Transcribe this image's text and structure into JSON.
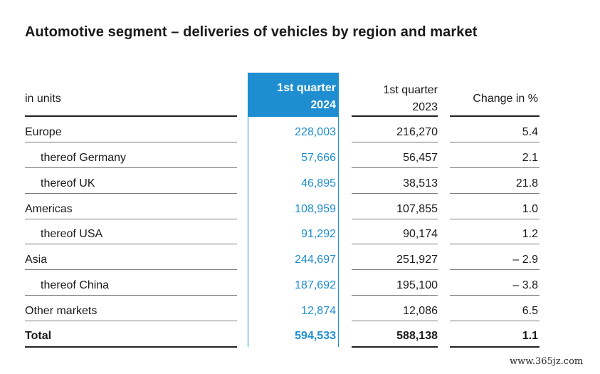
{
  "title": "Automotive segment – deliveries of vehicles by region and market",
  "header": {
    "label": "in units",
    "col1_line1": "1st quarter",
    "col1_line2": "2024",
    "col2_line1": "1st quarter",
    "col2_line2": "2023",
    "col3": "Change in %"
  },
  "rows": [
    {
      "label": "Europe",
      "q2024": "228,003",
      "q2023": "216,270",
      "change": "5.4"
    },
    {
      "label": "thereof Germany",
      "q2024": "57,666",
      "q2023": "56,457",
      "change": "2.1"
    },
    {
      "label": "thereof UK",
      "q2024": "46,895",
      "q2023": "38,513",
      "change": "21.8"
    },
    {
      "label": "Americas",
      "q2024": "108,959",
      "q2023": "107,855",
      "change": "1.0"
    },
    {
      "label": "thereof USA",
      "q2024": "91,292",
      "q2023": "90,174",
      "change": "1.2"
    },
    {
      "label": "Asia",
      "q2024": "244,697",
      "q2023": "251,927",
      "change": "– 2.9"
    },
    {
      "label": "thereof China",
      "q2024": "187,692",
      "q2023": "195,100",
      "change": "– 3.8"
    },
    {
      "label": "Other markets",
      "q2024": "12,874",
      "q2023": "12,086",
      "change": "6.5"
    },
    {
      "label": "Total",
      "q2024": "594,533",
      "q2023": "588,138",
      "change": "1.1"
    }
  ],
  "colors": {
    "accent": "#1e8ed0",
    "text": "#1a1a1a"
  },
  "watermark": "www.365jz.com"
}
